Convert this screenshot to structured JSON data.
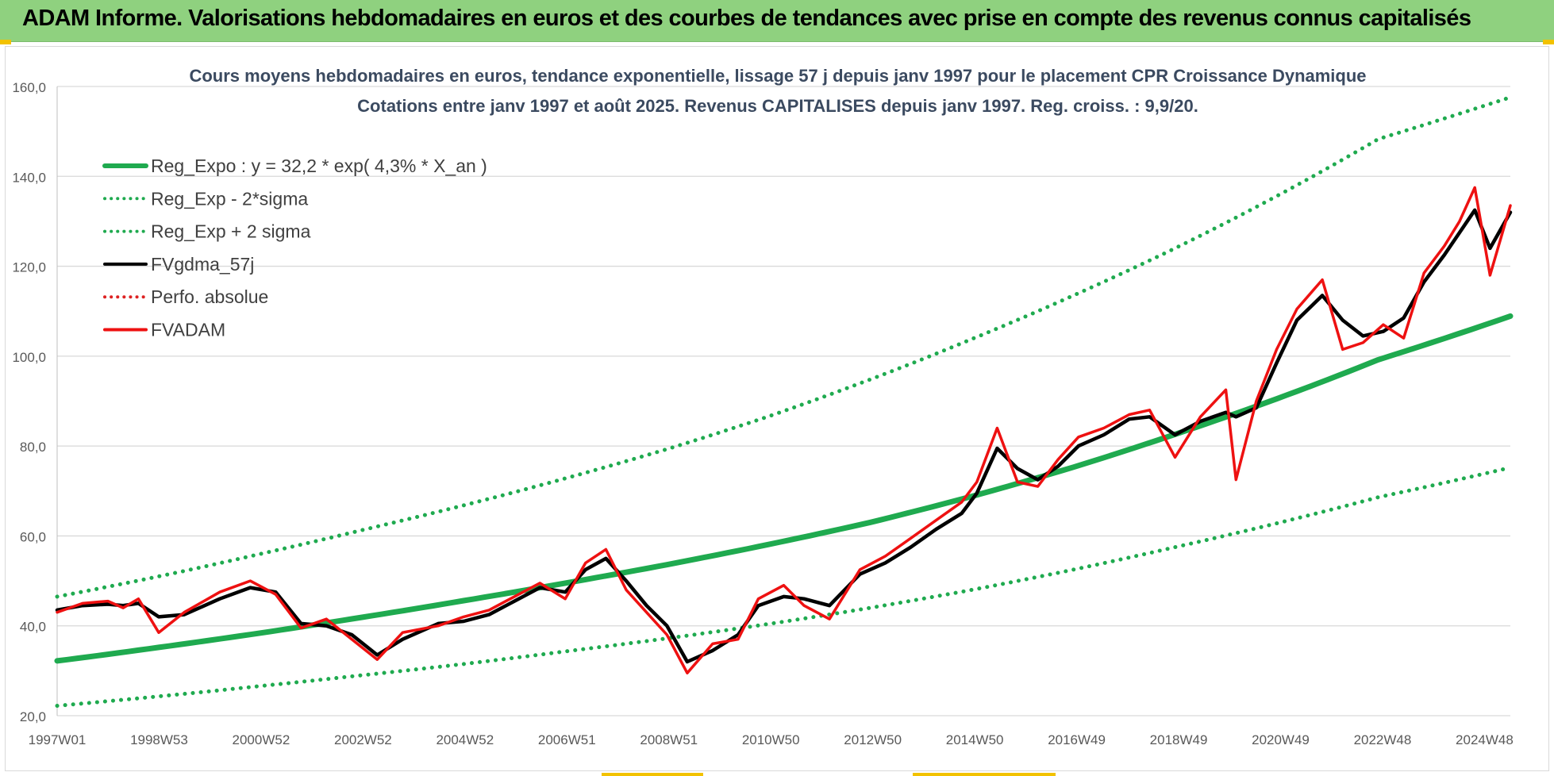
{
  "header": {
    "title": "ADAM Informe. Valorisations hebdomadaires en euros et des courbes de tendances avec prise en compte des revenus connus capitalisés"
  },
  "colors": {
    "header_bg": "#8fd17f",
    "reg_expo": "#1faa4f",
    "sigma_bands": "#1faa4f",
    "fvgdma": "#000000",
    "fvadam": "#ee1111",
    "perfo": "#dd2222",
    "grid": "#d9d9d9"
  },
  "chart_data": {
    "type": "line",
    "title": "Cours moyens hebdomadaires en euros, tendance exponentielle, lissage 57 j depuis janv 1997 pour le placement CPR Croissance Dynamique",
    "subtitle": "Cotations entre janv 1997 et août 2025. Revenus CAPITALISES depuis janv 1997. Reg. croiss. : 9,9/20.",
    "xlabel": "",
    "ylabel": "",
    "ylim": [
      20,
      160
    ],
    "yticks": [
      "20,0",
      "40,0",
      "60,0",
      "80,0",
      "100,0",
      "120,0",
      "140,0",
      "160,0"
    ],
    "xticks": [
      "1997W01",
      "1998W53",
      "2000W52",
      "2002W52",
      "2004W52",
      "2006W51",
      "2008W51",
      "2010W50",
      "2012W50",
      "2014W50",
      "2016W49",
      "2018W49",
      "2020W49",
      "2022W48",
      "2024W48"
    ],
    "xlim": [
      1997.0,
      2025.6
    ],
    "grid": "horizontal",
    "legend_position": "top-left",
    "legend": [
      {
        "label": "Reg_Expo : y = 32,2 * exp( 4,3% *  X_an )",
        "style": "solid-thick",
        "color": "#1faa4f"
      },
      {
        "label": "Reg_Exp - 2*sigma",
        "style": "dotted",
        "color": "#1faa4f"
      },
      {
        "label": "Reg_Exp + 2 sigma",
        "style": "dotted",
        "color": "#1faa4f"
      },
      {
        "label": "FVgdma_57j",
        "style": "solid",
        "color": "#000000"
      },
      {
        "label": "Perfo. absolue",
        "style": "dotted",
        "color": "#dd2222"
      },
      {
        "label": "FVADAM",
        "style": "solid",
        "color": "#ee1111"
      }
    ],
    "series": [
      {
        "name": "Reg_Expo : y = 32,2 * exp( 4,3% *  X_an )",
        "x": [
          1997.0,
          1999.0,
          2001.0,
          2003.0,
          2005.0,
          2007.0,
          2009.0,
          2011.0,
          2013.0,
          2015.0,
          2017.0,
          2019.0,
          2021.0,
          2023.0,
          2025.6
        ],
        "values": [
          32.2,
          35.2,
          38.4,
          41.9,
          45.6,
          49.5,
          53.6,
          58.1,
          63.0,
          68.8,
          75.3,
          82.6,
          90.5,
          99.2,
          108.9
        ]
      },
      {
        "name": "Reg_Exp - 2*sigma",
        "x": [
          1997.0,
          1999.0,
          2001.0,
          2003.0,
          2005.0,
          2007.0,
          2009.0,
          2011.0,
          2013.0,
          2015.0,
          2017.0,
          2019.0,
          2021.0,
          2023.0,
          2025.6
        ],
        "values": [
          22.2,
          24.3,
          26.6,
          29.0,
          31.5,
          34.3,
          37.2,
          40.4,
          44.0,
          48.0,
          52.5,
          57.5,
          62.8,
          68.6,
          75.2
        ]
      },
      {
        "name": "Reg_Exp + 2 sigma",
        "x": [
          1997.0,
          1999.0,
          2001.0,
          2003.0,
          2005.0,
          2007.0,
          2009.0,
          2011.0,
          2013.0,
          2015.0,
          2017.0,
          2019.0,
          2021.0,
          2023.0,
          2025.6
        ],
        "values": [
          46.5,
          51.0,
          56.0,
          61.3,
          66.8,
          72.8,
          79.3,
          86.6,
          94.8,
          103.8,
          113.5,
          124.0,
          135.6,
          148.3,
          157.6
        ]
      },
      {
        "name": "FVgdma_57j",
        "x": [
          1997.0,
          1997.5,
          1998.0,
          1998.3,
          1998.6,
          1999.0,
          1999.5,
          2000.2,
          2000.8,
          2001.3,
          2001.8,
          2002.3,
          2002.8,
          2003.3,
          2003.8,
          2004.5,
          2005.0,
          2005.5,
          2006.0,
          2006.5,
          2007.0,
          2007.4,
          2007.8,
          2008.2,
          2008.6,
          2009.0,
          2009.4,
          2009.9,
          2010.4,
          2010.8,
          2011.3,
          2011.7,
          2012.2,
          2012.8,
          2013.3,
          2013.8,
          2014.3,
          2014.8,
          2015.1,
          2015.5,
          2015.9,
          2016.3,
          2016.7,
          2017.1,
          2017.6,
          2018.1,
          2018.5,
          2019.0,
          2019.5,
          2020.0,
          2020.2,
          2020.6,
          2021.0,
          2021.4,
          2021.9,
          2022.3,
          2022.7,
          2023.1,
          2023.5,
          2023.9,
          2024.3,
          2024.6,
          2024.9,
          2025.2,
          2025.6
        ],
        "values": [
          43.5,
          44.5,
          44.8,
          44.5,
          45.0,
          42.0,
          42.5,
          46.0,
          48.5,
          47.5,
          40.5,
          40.0,
          38.0,
          33.5,
          37.0,
          40.5,
          41.0,
          42.5,
          45.5,
          48.5,
          47.5,
          52.5,
          55.0,
          50.0,
          44.5,
          40.0,
          32.0,
          34.5,
          38.0,
          44.5,
          46.5,
          46.0,
          44.5,
          51.5,
          54.0,
          57.5,
          61.5,
          65.0,
          69.5,
          79.5,
          75.0,
          72.5,
          75.5,
          80.0,
          82.5,
          86.0,
          86.5,
          82.5,
          85.5,
          87.5,
          86.5,
          88.5,
          98.5,
          108.0,
          113.5,
          108.0,
          104.5,
          105.5,
          108.5,
          116.5,
          122.5,
          127.5,
          132.5,
          124.0,
          132.0
        ]
      },
      {
        "name": "FVADAM",
        "x": [
          1997.0,
          1997.5,
          1998.0,
          1998.3,
          1998.6,
          1999.0,
          1999.5,
          2000.2,
          2000.8,
          2001.3,
          2001.8,
          2002.3,
          2002.8,
          2003.3,
          2003.8,
          2004.5,
          2005.0,
          2005.5,
          2006.0,
          2006.5,
          2007.0,
          2007.4,
          2007.8,
          2008.2,
          2008.6,
          2009.0,
          2009.4,
          2009.9,
          2010.4,
          2010.8,
          2011.3,
          2011.7,
          2012.2,
          2012.8,
          2013.3,
          2013.8,
          2014.3,
          2014.8,
          2015.1,
          2015.5,
          2015.9,
          2016.3,
          2016.7,
          2017.1,
          2017.6,
          2018.1,
          2018.5,
          2019.0,
          2019.5,
          2020.0,
          2020.2,
          2020.6,
          2021.0,
          2021.4,
          2021.9,
          2022.3,
          2022.7,
          2023.1,
          2023.5,
          2023.9,
          2024.3,
          2024.6,
          2024.9,
          2025.2,
          2025.6
        ],
        "values": [
          43.0,
          45.0,
          45.5,
          44.0,
          46.0,
          38.5,
          43.0,
          47.5,
          50.0,
          47.0,
          39.5,
          41.5,
          37.0,
          32.5,
          38.5,
          40.0,
          42.0,
          43.5,
          46.5,
          49.5,
          46.0,
          54.0,
          57.0,
          48.0,
          43.0,
          38.0,
          29.5,
          36.0,
          37.0,
          46.0,
          49.0,
          44.5,
          41.5,
          52.5,
          55.5,
          59.5,
          63.5,
          67.5,
          72.0,
          84.0,
          72.0,
          71.0,
          77.0,
          82.0,
          84.0,
          87.0,
          88.0,
          77.5,
          86.5,
          92.5,
          72.5,
          90.0,
          101.5,
          110.5,
          117.0,
          101.5,
          103.0,
          107.0,
          104.0,
          118.5,
          124.5,
          130.0,
          137.5,
          118.0,
          133.5
        ]
      }
    ]
  }
}
